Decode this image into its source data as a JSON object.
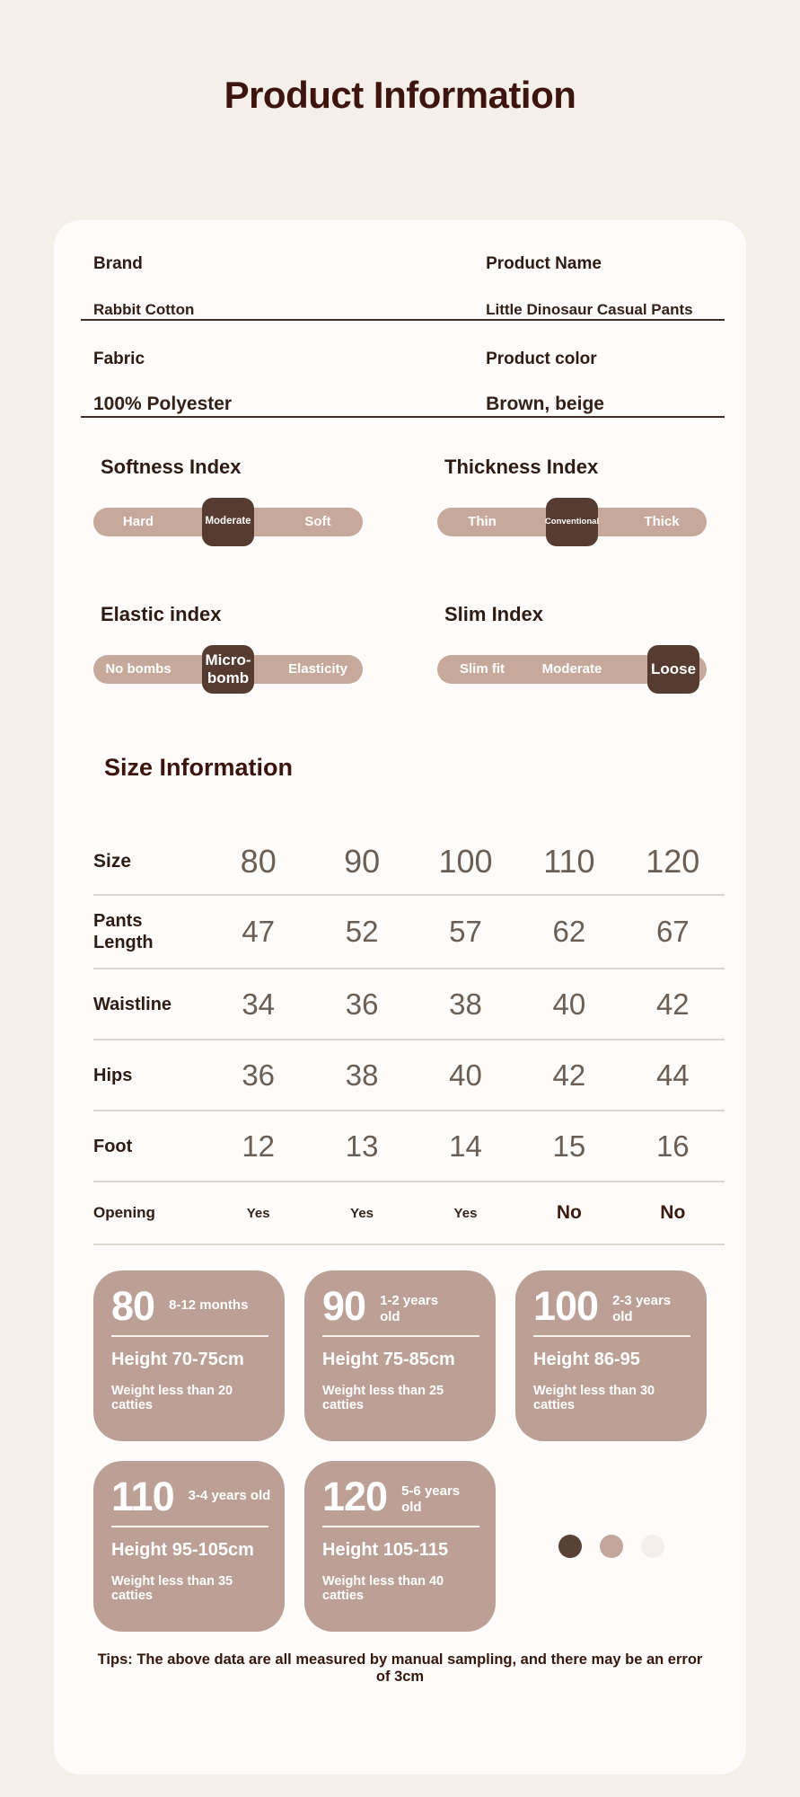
{
  "page": {
    "title": "Product Information",
    "tips": "Tips: The above data are all measured by manual sampling, and there may be an error of 3cm"
  },
  "info_rows": [
    {
      "left_label": "Brand",
      "left_value": "Rabbit Cotton",
      "right_label": "Product Name",
      "right_value": "Little Dinosaur Casual Pants"
    },
    {
      "left_label": "Fabric",
      "left_value": "100% Polyester",
      "right_label": "Product color",
      "right_value": "Brown, beige"
    }
  ],
  "indices": [
    {
      "title": "Softness Index",
      "labels": [
        "Hard",
        "",
        "Soft"
      ],
      "knob": "Moderate",
      "knob_position": "center"
    },
    {
      "title": "Thickness Index",
      "labels": [
        "Thin",
        "",
        "Thick"
      ],
      "knob": "Conventional",
      "knob_position": "center"
    },
    {
      "title": "Elastic index",
      "labels": [
        "No bombs",
        "",
        "Elasticity"
      ],
      "knob": "Micro-bomb",
      "knob_position": "center"
    },
    {
      "title": "Slim Index",
      "labels": [
        "Slim fit",
        "Moderate",
        ""
      ],
      "knob": "Loose",
      "knob_position": "right"
    }
  ],
  "size_section": {
    "heading": "Size Information",
    "table": {
      "header_label": "Size",
      "sizes": [
        "80",
        "90",
        "100",
        "110",
        "120"
      ],
      "rows": [
        {
          "label": "Pants Length",
          "values": [
            "47",
            "52",
            "57",
            "62",
            "67"
          ]
        },
        {
          "label": "Waistline",
          "values": [
            "34",
            "36",
            "38",
            "40",
            "42"
          ]
        },
        {
          "label": "Hips",
          "values": [
            "36",
            "38",
            "40",
            "42",
            "44"
          ]
        },
        {
          "label": "Foot",
          "values": [
            "12",
            "13",
            "14",
            "15",
            "16"
          ]
        },
        {
          "label": "Opening",
          "values": [
            "Yes",
            "Yes",
            "Yes",
            "No",
            "No"
          ]
        }
      ]
    },
    "cards": [
      {
        "size": "80",
        "age": "8-12 months",
        "height": "Height 70-75cm",
        "weight": "Weight less than 20 catties"
      },
      {
        "size": "90",
        "age": "1-2 years old",
        "height": "Height 75-85cm",
        "weight": "Weight less than 25 catties"
      },
      {
        "size": "100",
        "age": "2-3 years old",
        "height": "Height 86-95",
        "weight": "Weight less than 30 catties"
      },
      {
        "size": "110",
        "age": "3-4 years old",
        "height": "Height 95-105cm",
        "weight": "Weight less than 35 catties"
      },
      {
        "size": "120",
        "age": "5-6 years old",
        "height": "Height 105-115",
        "weight": "Weight less than 40 catties"
      }
    ],
    "dot_colors": [
      "#5a4136",
      "#c3a59b",
      "#f4efea"
    ]
  },
  "theme": {
    "page_bg": "#f4efe9",
    "card_bg": "#fdfcfa",
    "accent_dark": "#3d150e",
    "slider_track": "#c7a99c",
    "slider_knob": "#553b30",
    "size_card_bg": "#bda095"
  }
}
